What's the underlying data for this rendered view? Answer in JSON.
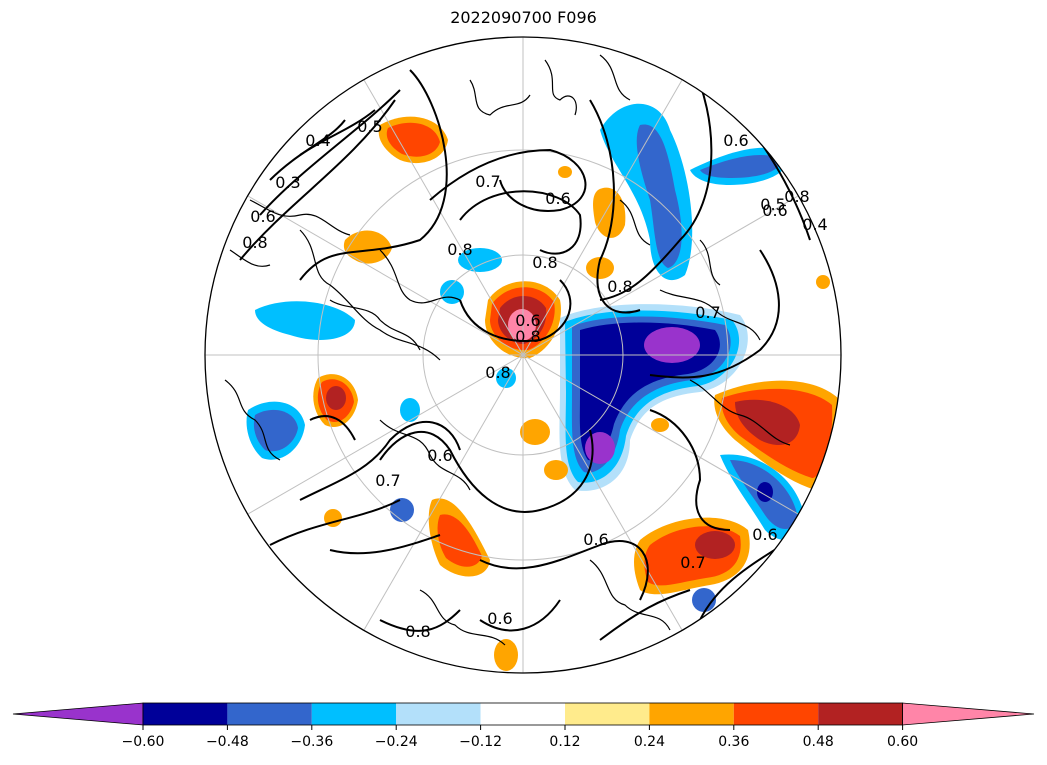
{
  "title": "2022090700 F096",
  "colorbar": {
    "colors": [
      "#9933cc",
      "#000099",
      "#3366cc",
      "#00bfff",
      "#b3e0fa",
      "#ffffff",
      "#ffeb8c",
      "#ffa500",
      "#ff4500",
      "#b22222",
      "#ff85a8"
    ],
    "tick_labels": [
      "−0.60",
      "−0.48",
      "−0.36",
      "−0.24",
      "−0.12",
      "0.12",
      "0.24",
      "0.36",
      "0.48",
      "0.60"
    ]
  },
  "contour_labels": [
    "0.4",
    "0.5",
    "0.3",
    "0.6",
    "0.8",
    "0.7",
    "0.6",
    "0.8",
    "0.8",
    "0.8",
    "0.6",
    "0.8",
    "0.7",
    "0.6",
    "0.6",
    "0.8",
    "0.6",
    "0.7",
    "0.8",
    "0.6",
    "0.7",
    "0.8",
    "0.6",
    "0.5",
    "0.4",
    "0.6"
  ]
}
